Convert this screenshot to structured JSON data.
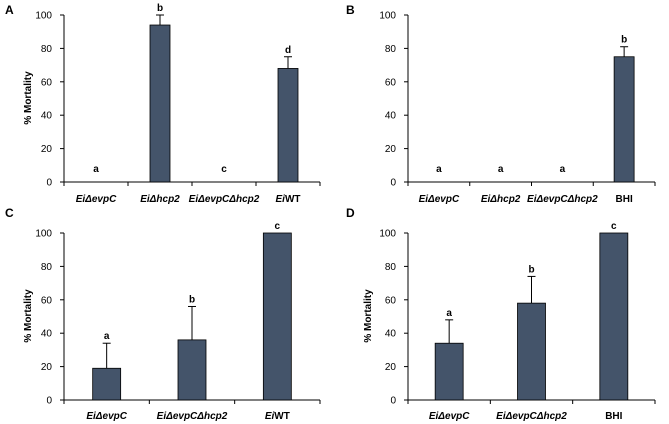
{
  "figure": {
    "colors": {
      "bar": "#44546a",
      "axis": "#000000"
    }
  },
  "chart_data": [
    {
      "panel": "A",
      "type": "bar",
      "categories": [
        "EiΔevpC",
        "EiΔhcp2",
        "EiΔevpCΔhcp2",
        "EiWT"
      ],
      "category_italic": [
        true,
        true,
        true,
        "partial"
      ],
      "values": [
        0,
        94,
        0,
        68
      ],
      "errors": [
        0,
        6,
        0,
        7
      ],
      "significance": [
        "a",
        "b",
        "c",
        "d"
      ],
      "ylabel": "% Mortality",
      "ylim": [
        0,
        100
      ],
      "yticks": [
        0,
        20,
        40,
        60,
        80,
        100
      ]
    },
    {
      "panel": "B",
      "type": "bar",
      "categories": [
        "EiΔevpC",
        "EiΔhcp2",
        "EiΔevpCΔhcp2",
        "BHI"
      ],
      "category_italic": [
        true,
        true,
        true,
        false
      ],
      "values": [
        0,
        0,
        0,
        75
      ],
      "errors": [
        0,
        0,
        0,
        6
      ],
      "significance": [
        "a",
        "a",
        "a",
        "b"
      ],
      "ylabel": "",
      "ylim": [
        0,
        100
      ],
      "yticks": [
        0,
        20,
        40,
        60,
        80,
        100
      ]
    },
    {
      "panel": "C",
      "type": "bar",
      "categories": [
        "EiΔevpC",
        "EiΔevpCΔhcp2",
        "EiWT"
      ],
      "category_italic": [
        true,
        true,
        "partial"
      ],
      "values": [
        19,
        36,
        100
      ],
      "errors": [
        15,
        20,
        0
      ],
      "significance": [
        "a",
        "b",
        "c"
      ],
      "ylabel": "% Mortality",
      "ylim": [
        0,
        100
      ],
      "yticks": [
        0,
        20,
        40,
        60,
        80,
        100
      ]
    },
    {
      "panel": "D",
      "type": "bar",
      "categories": [
        "EiΔevpC",
        "EiΔevpCΔhcp2",
        "BHI"
      ],
      "category_italic": [
        true,
        true,
        false
      ],
      "values": [
        34,
        58,
        100
      ],
      "errors": [
        14,
        16,
        0
      ],
      "significance": [
        "a",
        "b",
        "c"
      ],
      "ylabel": "% Mortality",
      "ylim": [
        0,
        100
      ],
      "yticks": [
        0,
        20,
        40,
        60,
        80,
        100
      ]
    }
  ]
}
